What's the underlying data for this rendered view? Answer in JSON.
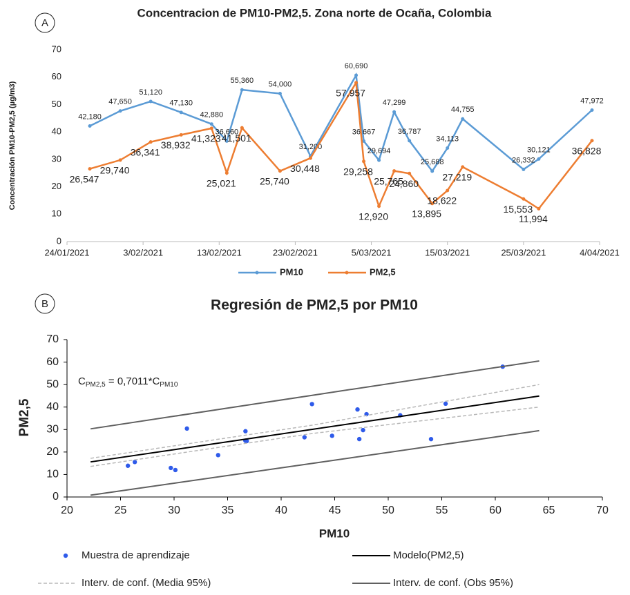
{
  "chart_data": [
    {
      "type": "line",
      "panel": "A",
      "title": "Concentracion de PM10-PM2,5. Zona norte de Ocaña, Colombia",
      "y_label": "Concentración PM10-PM2,5 (µg/m3)",
      "x": [
        "2021-01-27",
        "2021-01-31",
        "2021-02-04",
        "2021-02-08",
        "2021-02-12",
        "2021-02-14",
        "2021-02-16",
        "2021-02-21",
        "2021-02-25",
        "2021-03-03",
        "2021-03-04",
        "2021-03-06",
        "2021-03-08",
        "2021-03-10",
        "2021-03-13",
        "2021-03-15",
        "2021-03-17",
        "2021-03-25",
        "2021-03-27",
        "2021-04-03"
      ],
      "xlim": [
        "2021-01-24",
        "2021-04-04"
      ],
      "xticks": [
        {
          "value": "2021-01-24",
          "label": "24/01/2021"
        },
        {
          "value": "2021-02-03",
          "label": "3/02/2021"
        },
        {
          "value": "2021-02-13",
          "label": "13/02/2021"
        },
        {
          "value": "2021-02-23",
          "label": "23/02/2021"
        },
        {
          "value": "2021-03-05",
          "label": "5/03/2021"
        },
        {
          "value": "2021-03-15",
          "label": "15/03/2021"
        },
        {
          "value": "2021-03-25",
          "label": "25/03/2021"
        },
        {
          "value": "2021-04-04",
          "label": "4/04/2021"
        }
      ],
      "ylim": [
        0,
        70
      ],
      "yticks": [
        0,
        10,
        20,
        30,
        40,
        50,
        60,
        70
      ],
      "legend": "bottom",
      "series": [
        {
          "name": "PM10",
          "color": "#5b9bd5",
          "values": [
            42.18,
            47.65,
            51.12,
            47.13,
            42.88,
            36.66,
            55.36,
            54.0,
            31.2,
            60.69,
            36.667,
            29.694,
            47.299,
            36.787,
            25.688,
            34.113,
            44.755,
            26.332,
            30.121,
            47.972
          ],
          "value_labels": [
            "42,180",
            "47,650",
            "51,120",
            "47,130",
            "42,880",
            "36,660",
            "55,360",
            "54,000",
            "31,200",
            "60,690",
            "36,667",
            "29,694",
            "47,299",
            "36,787",
            "25,688",
            "34,113",
            "44,755",
            "26,332",
            "30,121",
            "47,972"
          ]
        },
        {
          "name": "PM2,5",
          "color": "#ed7d31",
          "values": [
            26.547,
            29.74,
            36.341,
            38.932,
            41.323,
            25.021,
            41.501,
            25.74,
            30.448,
            57.957,
            29.258,
            12.92,
            25.765,
            24.86,
            13.895,
            18.622,
            27.219,
            15.553,
            11.994,
            36.828
          ],
          "value_labels": [
            "26,547",
            "29,740",
            "36,341",
            "38,932",
            "41,323",
            "25,021",
            "41,501",
            "25,740",
            "30,448",
            "57,957",
            "29,258",
            "12,920",
            "25,765",
            "24,860",
            "13,895",
            "18,622",
            "27,219",
            "15,553",
            "11,994",
            "36,828"
          ]
        }
      ]
    },
    {
      "type": "scatter",
      "panel": "B",
      "title": "Regresión de PM2,5 por PM10",
      "x_label": "PM10",
      "y_label": "PM2,5",
      "equation": [
        "C",
        "PM2,5",
        " = 0,7011*C",
        "PM10"
      ],
      "xlim": [
        20,
        70
      ],
      "xticks": [
        20,
        25,
        30,
        35,
        40,
        45,
        50,
        55,
        60,
        65,
        70
      ],
      "ylim": [
        0,
        70
      ],
      "yticks": [
        0,
        10,
        20,
        30,
        40,
        50,
        60,
        70
      ],
      "legend": "bottom",
      "series": [
        {
          "name": "Muestra de aprendizaje",
          "color": "#2f5bea",
          "style": "points",
          "x": [
            42.18,
            47.65,
            51.12,
            47.13,
            42.88,
            36.66,
            55.36,
            54.0,
            31.2,
            60.69,
            36.667,
            29.694,
            47.299,
            36.787,
            25.688,
            34.113,
            44.755,
            26.332,
            30.121,
            47.972
          ],
          "values": [
            26.547,
            29.74,
            36.341,
            38.932,
            41.323,
            25.021,
            41.501,
            25.74,
            30.448,
            57.957,
            29.258,
            12.92,
            25.765,
            24.86,
            13.895,
            18.622,
            27.219,
            15.553,
            11.994,
            36.828
          ]
        },
        {
          "name": "Modelo(PM2,5)",
          "color": "#000000",
          "style": "solid",
          "x": [
            22.2,
            64.1
          ],
          "values": [
            15.6,
            44.9
          ]
        },
        {
          "name": "Interv. de conf. (Media 95%)",
          "color": "#b8b8b8",
          "style": "dashed",
          "bounds": [
            {
              "x": [
                22.2,
                43,
                64.1
              ],
              "values": [
                17.2,
                32,
                50
              ]
            },
            {
              "x": [
                22.2,
                43,
                64.1
              ],
              "values": [
                13.6,
                28.3,
                40
              ]
            }
          ]
        },
        {
          "name": "Interv. de conf. (Obs 95%)",
          "color": "#606060",
          "style": "solid",
          "bounds": [
            {
              "x": [
                22.2,
                43,
                64.1
              ],
              "values": [
                30.3,
                45.3,
                60.5
              ]
            },
            {
              "x": [
                22.2,
                43,
                64.1
              ],
              "values": [
                0.8,
                15,
                29.5
              ]
            }
          ]
        }
      ]
    }
  ]
}
